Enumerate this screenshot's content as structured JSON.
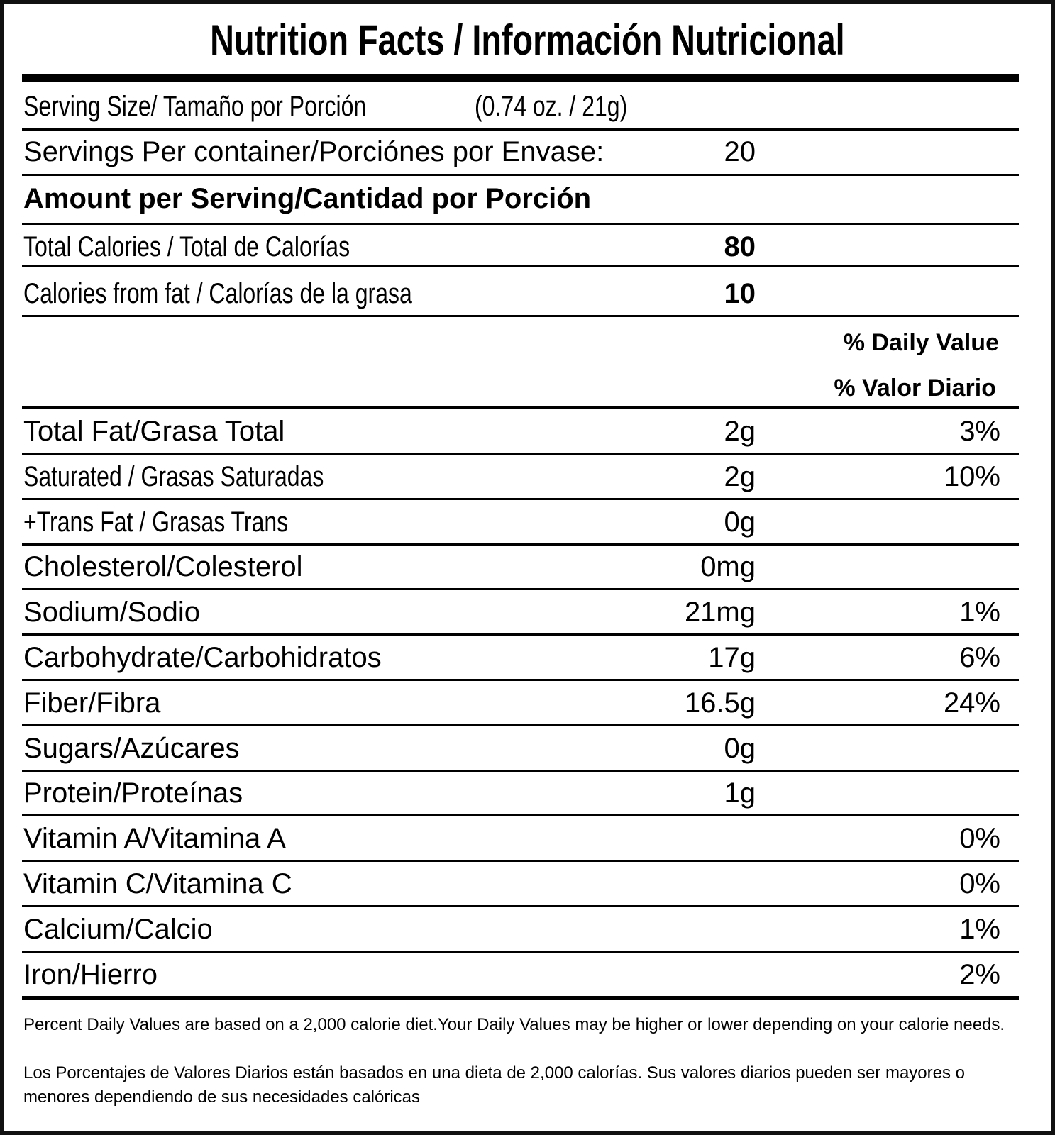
{
  "title": "Nutrition Facts / Información Nutricional",
  "serving_size": {
    "label": "Serving Size/ Tamaño por Porción",
    "value": "(0.74 oz. / 21g)"
  },
  "servings_per_container": {
    "label": "Servings Per container/Porciónes por Envase:",
    "value": "20"
  },
  "amount_per_serving": "Amount per Serving/Cantidad por Porción",
  "total_calories": {
    "label": "Total Calories / Total de Calorías",
    "value": "80"
  },
  "calories_from_fat": {
    "label": "Calories from fat / Calorías de la grasa",
    "value": "10"
  },
  "daily_value_header": {
    "en": "% Daily Value",
    "es": "% Valor Diario"
  },
  "nutrients": [
    {
      "label": "Total Fat/Grasa Total",
      "amount": "2g",
      "percent": "3%"
    },
    {
      "label": "Saturated / Grasas Saturadas",
      "amount": "2g",
      "percent": "10%"
    },
    {
      "label": "+Trans Fat / Grasas Trans",
      "amount": "0g",
      "percent": ""
    },
    {
      "label": "Cholesterol/Colesterol",
      "amount": "0mg",
      "percent": ""
    },
    {
      "label": "Sodium/Sodio",
      "amount": "21mg",
      "percent": "1%"
    },
    {
      "label": "Carbohydrate/Carbohidratos",
      "amount": "17g",
      "percent": "6%"
    },
    {
      "label": "Fiber/Fibra",
      "amount": "16.5g",
      "percent": "24%"
    },
    {
      "label": "Sugars/Azúcares",
      "amount": "0g",
      "percent": ""
    },
    {
      "label": "Protein/Proteínas",
      "amount": "1g",
      "percent": ""
    },
    {
      "label": "Vitamin A/Vitamina A",
      "amount": "",
      "percent": "0%"
    },
    {
      "label": "Vitamin C/Vitamina C",
      "amount": "",
      "percent": "0%"
    },
    {
      "label": "Calcium/Calcio",
      "amount": "",
      "percent": "1%"
    },
    {
      "label": "Iron/Hierro",
      "amount": "",
      "percent": "2%"
    }
  ],
  "footnote": {
    "en": "Percent Daily Values are based on a 2,000 calorie diet.Your Daily Values may be higher or lower depending on your calorie needs.",
    "es": "Los Porcentajes de Valores Diarios están basados en una dieta de 2,000 calorías. Sus valores diarios pueden ser mayores o menores dependiendo de sus necesidades calóricas"
  }
}
